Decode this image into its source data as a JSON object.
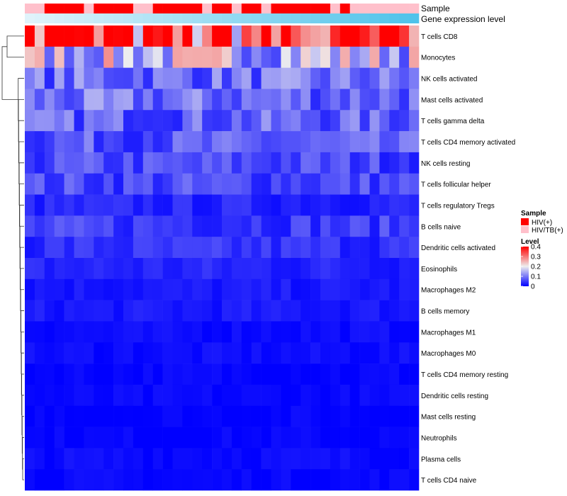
{
  "chart_data": {
    "type": "heatmap",
    "column_count": 40,
    "annotations": {
      "sample": {
        "label": "Sample",
        "values": [
          "HIV/TB(+)",
          "HIV/TB(+)",
          "HIV(+)",
          "HIV(+)",
          "HIV(+)",
          "HIV(+)",
          "HIV/TB(+)",
          "HIV(+)",
          "HIV(+)",
          "HIV(+)",
          "HIV(+)",
          "HIV/TB(+)",
          "HIV/TB(+)",
          "HIV(+)",
          "HIV(+)",
          "HIV(+)",
          "HIV(+)",
          "HIV(+)",
          "HIV/TB(+)",
          "HIV(+)",
          "HIV(+)",
          "HIV/TB(+)",
          "HIV(+)",
          "HIV(+)",
          "HIV/TB(+)",
          "HIV(+)",
          "HIV(+)",
          "HIV(+)",
          "HIV(+)",
          "HIV(+)",
          "HIV(+)",
          "HIV/TB(+)",
          "HIV(+)",
          "HIV/TB(+)",
          "HIV/TB(+)",
          "HIV/TB(+)",
          "HIV/TB(+)",
          "HIV/TB(+)",
          "HIV/TB(+)",
          "HIV/TB(+)"
        ]
      },
      "expression": {
        "label": "Gene expression level",
        "color_low": "#e0f3fb",
        "color_high": "#4fc3ea"
      }
    },
    "rows": [
      {
        "name": "T cells CD8",
        "base": 0.32
      },
      {
        "name": "Monocytes",
        "base": 0.17
      },
      {
        "name": "NK cells activated",
        "base": 0.09
      },
      {
        "name": "Mast cells activated",
        "base": 0.09
      },
      {
        "name": "T cells gamma delta",
        "base": 0.08
      },
      {
        "name": "T cells CD4 memory activated",
        "base": 0.07
      },
      {
        "name": "NK cells resting",
        "base": 0.06
      },
      {
        "name": "T cells follicular helper",
        "base": 0.06
      },
      {
        "name": "T cells regulatory  Tregs",
        "base": 0.03
      },
      {
        "name": "B cells naive",
        "base": 0.05
      },
      {
        "name": "Dendritic cells activated",
        "base": 0.04
      },
      {
        "name": "Eosinophils",
        "base": 0.03
      },
      {
        "name": "Macrophages M2",
        "base": 0.02
      },
      {
        "name": "B cells memory",
        "base": 0.02
      },
      {
        "name": "Macrophages M1",
        "base": 0.01
      },
      {
        "name": "Macrophages M0",
        "base": 0.01
      },
      {
        "name": "T cells CD4 memory resting",
        "base": 0.005
      },
      {
        "name": "Dendritic cells resting",
        "base": 0.005
      },
      {
        "name": "Mast cells resting",
        "base": 0.003
      },
      {
        "name": "Neutrophils",
        "base": 0.003
      },
      {
        "name": "Plasma cells",
        "base": 0.01
      },
      {
        "name": "T cells CD4 naive",
        "base": 0.005
      }
    ],
    "legend": {
      "sample": {
        "title": "Sample",
        "items": [
          {
            "label": "HIV(+)",
            "color": "#ff0000"
          },
          {
            "label": "HIV/TB(+)",
            "color": "#ffc0cb"
          }
        ]
      },
      "level": {
        "title": "Level",
        "ticks": [
          "0.4",
          "0.3",
          "0.2",
          "0.1",
          "0"
        ],
        "tick_values": [
          0.4,
          0.3,
          0.2,
          0.1,
          0
        ],
        "range": [
          0,
          0.4
        ],
        "colors": {
          "low": "#0000ff",
          "mid": "#eeeeee",
          "high": "#ff0000"
        }
      }
    }
  }
}
